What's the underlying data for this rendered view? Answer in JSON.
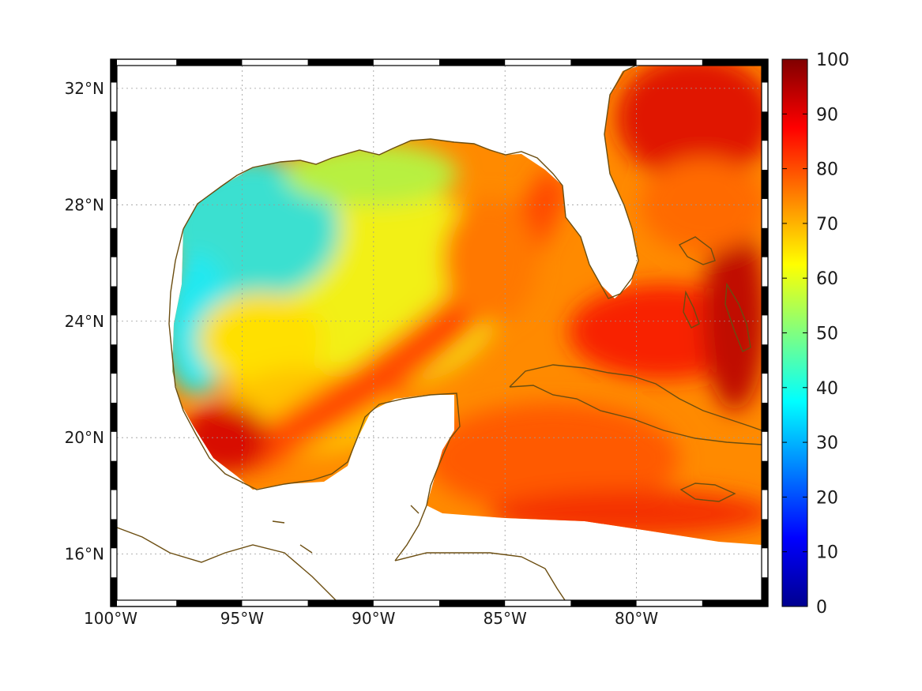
{
  "chart_data": {
    "type": "heatmap",
    "title": "",
    "xlabel": "",
    "ylabel": "",
    "projection": "lon-lat map",
    "region": "Gulf of Mexico and western Caribbean",
    "xlim": [
      -100,
      -75
    ],
    "ylim": [
      14.2,
      33.0
    ],
    "colormap": "jet",
    "grid": true,
    "frame": "black-and-white map frame",
    "coastline_color": "#6b4d10",
    "nodata_color": "#ffffff",
    "x_ticks": [
      {
        "value": -100,
        "label": "100°W"
      },
      {
        "value": -95,
        "label": "95°W"
      },
      {
        "value": -90,
        "label": "90°W"
      },
      {
        "value": -85,
        "label": "85°W"
      },
      {
        "value": -80,
        "label": "80°W"
      }
    ],
    "y_ticks": [
      {
        "value": 16,
        "label": "16°N"
      },
      {
        "value": 20,
        "label": "20°N"
      },
      {
        "value": 24,
        "label": "24°N"
      },
      {
        "value": 28,
        "label": "28°N"
      },
      {
        "value": 32,
        "label": "32°N"
      }
    ],
    "colorbar": {
      "min": 0,
      "max": 100,
      "tick_values": [
        0,
        10,
        20,
        30,
        40,
        50,
        60,
        70,
        80,
        90,
        100
      ],
      "tick_labels": [
        "0",
        "10",
        "20",
        "30",
        "40",
        "50",
        "60",
        "70",
        "80",
        "90",
        "100"
      ],
      "stops": [
        "#00008f",
        "#0000ff",
        "#0080ff",
        "#00ffff",
        "#80ff80",
        "#ffff00",
        "#ff8000",
        "#ff0000",
        "#800000"
      ]
    },
    "field_description_values": [
      {
        "area": "NW Gulf coast (Texas/Louisiana shelf)",
        "approx_value": 40
      },
      {
        "area": "Western Gulf off Texas",
        "approx_value": 38
      },
      {
        "area": "Central Gulf",
        "approx_value": 65
      },
      {
        "area": "Loop Current band (Yucatan to Florida Panhandle)",
        "approx_value": 82
      },
      {
        "area": "Bay of Campeche southwest",
        "approx_value": 92
      },
      {
        "area": "Straits of Florida / Cuba north coast",
        "approx_value": 85
      },
      {
        "area": "Western Caribbean",
        "approx_value": 80
      },
      {
        "area": "Atlantic off Georgia/Carolinas",
        "approx_value": 90
      },
      {
        "area": "Bahamas banks",
        "approx_value": 88
      }
    ]
  }
}
